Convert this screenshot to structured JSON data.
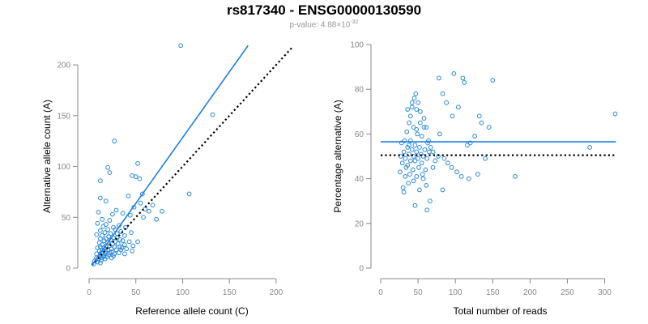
{
  "title": "rs817340 - ENSG00000130590",
  "subtitle": {
    "prefix": "p-value: 4.88",
    "times": "×10",
    "exponent": "-32"
  },
  "colors": {
    "points": "#2a88d8",
    "fit": "#1f7fe0",
    "reference": "#000000",
    "axis": "#888888"
  },
  "chart_data": [
    {
      "type": "scatter",
      "xlabel": "Reference allele count (C)",
      "ylabel": "Alternative allele count (A)",
      "xlim": [
        0,
        220
      ],
      "ylim": [
        0,
        220
      ],
      "xticks": [
        0,
        50,
        100,
        150,
        200
      ],
      "yticks": [
        0,
        50,
        100,
        150,
        200
      ],
      "fit_line": {
        "from": [
          3,
          3
        ],
        "to": [
          170,
          219
        ]
      },
      "reference_line": {
        "from": [
          3,
          3
        ],
        "to": [
          217,
          217
        ]
      },
      "points": [
        [
          98,
          219
        ],
        [
          132,
          151
        ],
        [
          27,
          125
        ],
        [
          52,
          103
        ],
        [
          20,
          99
        ],
        [
          22,
          94
        ],
        [
          50,
          90
        ],
        [
          46,
          91
        ],
        [
          54,
          88
        ],
        [
          12,
          86
        ],
        [
          57,
          73
        ],
        [
          107,
          73
        ],
        [
          42,
          71
        ],
        [
          12,
          69
        ],
        [
          18,
          66
        ],
        [
          55,
          64
        ],
        [
          68,
          62
        ],
        [
          48,
          60
        ],
        [
          60,
          58
        ],
        [
          64,
          56
        ],
        [
          78,
          56
        ],
        [
          29,
          57
        ],
        [
          10,
          55
        ],
        [
          36,
          54
        ],
        [
          25,
          53
        ],
        [
          44,
          52
        ],
        [
          58,
          50
        ],
        [
          72,
          48
        ],
        [
          14,
          48
        ],
        [
          22,
          47
        ],
        [
          9,
          44
        ],
        [
          18,
          43
        ],
        [
          32,
          42
        ],
        [
          15,
          41
        ],
        [
          26,
          40
        ],
        [
          39,
          40
        ],
        [
          20,
          38
        ],
        [
          28,
          38
        ],
        [
          12,
          37
        ],
        [
          34,
          36
        ],
        [
          45,
          35
        ],
        [
          17,
          35
        ],
        [
          23,
          34
        ],
        [
          30,
          34
        ],
        [
          8,
          33
        ],
        [
          14,
          32
        ],
        [
          38,
          32
        ],
        [
          21,
          31
        ],
        [
          26,
          30
        ],
        [
          30,
          30
        ],
        [
          12,
          29
        ],
        [
          18,
          29
        ],
        [
          33,
          28
        ],
        [
          23,
          28
        ],
        [
          36,
          27
        ],
        [
          16,
          27
        ],
        [
          28,
          26
        ],
        [
          43,
          26
        ],
        [
          52,
          26
        ],
        [
          11,
          25
        ],
        [
          20,
          25
        ],
        [
          25,
          24
        ],
        [
          31,
          24
        ],
        [
          14,
          23
        ],
        [
          38,
          23
        ],
        [
          18,
          22
        ],
        [
          22,
          22
        ],
        [
          27,
          21
        ],
        [
          12,
          21
        ],
        [
          33,
          21
        ],
        [
          16,
          20
        ],
        [
          9,
          20
        ],
        [
          24,
          19
        ],
        [
          40,
          19
        ],
        [
          20,
          18
        ],
        [
          14,
          18
        ],
        [
          29,
          18
        ],
        [
          11,
          17
        ],
        [
          46,
          17
        ],
        [
          18,
          16
        ],
        [
          24,
          16
        ],
        [
          13,
          15
        ],
        [
          22,
          15
        ],
        [
          32,
          15
        ],
        [
          8,
          14
        ],
        [
          17,
          14
        ],
        [
          27,
          14
        ],
        [
          12,
          13
        ],
        [
          21,
          13
        ],
        [
          15,
          12
        ],
        [
          11,
          11
        ],
        [
          19,
          11
        ],
        [
          8,
          10
        ],
        [
          14,
          10
        ],
        [
          24,
          10
        ],
        [
          10,
          9
        ],
        [
          17,
          9
        ],
        [
          13,
          8
        ],
        [
          6,
          7
        ],
        [
          9,
          6
        ],
        [
          12,
          5
        ],
        [
          5,
          4
        ],
        [
          35,
          20
        ],
        [
          16,
          12
        ],
        [
          38,
          14
        ],
        [
          26,
          12
        ],
        [
          47,
          22
        ],
        [
          34,
          18
        ]
      ]
    },
    {
      "type": "scatter",
      "xlabel": "Total number of reads",
      "ylabel": "Percentage alternative (A)",
      "xlim": [
        0,
        320
      ],
      "ylim": [
        0,
        100
      ],
      "xticks": [
        0,
        50,
        100,
        150,
        200,
        250,
        300
      ],
      "yticks": [
        0,
        20,
        40,
        60,
        80,
        100
      ],
      "fit_line": {
        "from": [
          0,
          56.5
        ],
        "to": [
          315,
          56.5
        ]
      },
      "reference_line": {
        "from": [
          0,
          50.5
        ],
        "to": [
          315,
          50.5
        ]
      },
      "points": [
        [
          47,
          78
        ],
        [
          42,
          72
        ],
        [
          45,
          76
        ],
        [
          50,
          74
        ],
        [
          48,
          71
        ],
        [
          53,
          70
        ],
        [
          40,
          68
        ],
        [
          58,
          67
        ],
        [
          38,
          65
        ],
        [
          44,
          63
        ],
        [
          61,
          63
        ],
        [
          35,
          61
        ],
        [
          49,
          60
        ],
        [
          55,
          59
        ],
        [
          32,
          57
        ],
        [
          40,
          57
        ],
        [
          63,
          56
        ],
        [
          28,
          56
        ],
        [
          46,
          55
        ],
        [
          52,
          54
        ],
        [
          36,
          54
        ],
        [
          59,
          53
        ],
        [
          42,
          53
        ],
        [
          65,
          52
        ],
        [
          31,
          52
        ],
        [
          48,
          52
        ],
        [
          54,
          51
        ],
        [
          38,
          51
        ],
        [
          44,
          50
        ],
        [
          27,
          50
        ],
        [
          57,
          50
        ],
        [
          50,
          49
        ],
        [
          33,
          49
        ],
        [
          62,
          49
        ],
        [
          40,
          48
        ],
        [
          46,
          48
        ],
        [
          29,
          47
        ],
        [
          55,
          47
        ],
        [
          36,
          46
        ],
        [
          51,
          45
        ],
        [
          43,
          44
        ],
        [
          60,
          44
        ],
        [
          26,
          43
        ],
        [
          39,
          42
        ],
        [
          48,
          41
        ],
        [
          33,
          41
        ],
        [
          57,
          40
        ],
        [
          44,
          39
        ],
        [
          37,
          38
        ],
        [
          30,
          36
        ],
        [
          52,
          35
        ],
        [
          31,
          34
        ],
        [
          66,
          30
        ],
        [
          46,
          28
        ],
        [
          62,
          26
        ],
        [
          98,
          87
        ],
        [
          110,
          85
        ],
        [
          112,
          83
        ],
        [
          150,
          84
        ],
        [
          78,
          85
        ],
        [
          83,
          78
        ],
        [
          88,
          74
        ],
        [
          96,
          68
        ],
        [
          104,
          72
        ],
        [
          135,
          65
        ],
        [
          126,
          59
        ],
        [
          120,
          56
        ],
        [
          132,
          68
        ],
        [
          145,
          63
        ],
        [
          116,
          55
        ],
        [
          79,
          60
        ],
        [
          70,
          52
        ],
        [
          73,
          48
        ],
        [
          77,
          50
        ],
        [
          85,
          49
        ],
        [
          90,
          47
        ],
        [
          95,
          45
        ],
        [
          102,
          43
        ],
        [
          108,
          41
        ],
        [
          118,
          40
        ],
        [
          130,
          42
        ],
        [
          180,
          41
        ],
        [
          83,
          35
        ],
        [
          140,
          49
        ],
        [
          280,
          54
        ],
        [
          314,
          69
        ],
        [
          36,
          71
        ],
        [
          42,
          74
        ],
        [
          58,
          63
        ],
        [
          64,
          57
        ],
        [
          67,
          54
        ],
        [
          70,
          45
        ],
        [
          56,
          42
        ],
        [
          34,
          45
        ],
        [
          38,
          55
        ],
        [
          61,
          37
        ],
        [
          48,
          62
        ],
        [
          53,
          65
        ]
      ]
    }
  ]
}
